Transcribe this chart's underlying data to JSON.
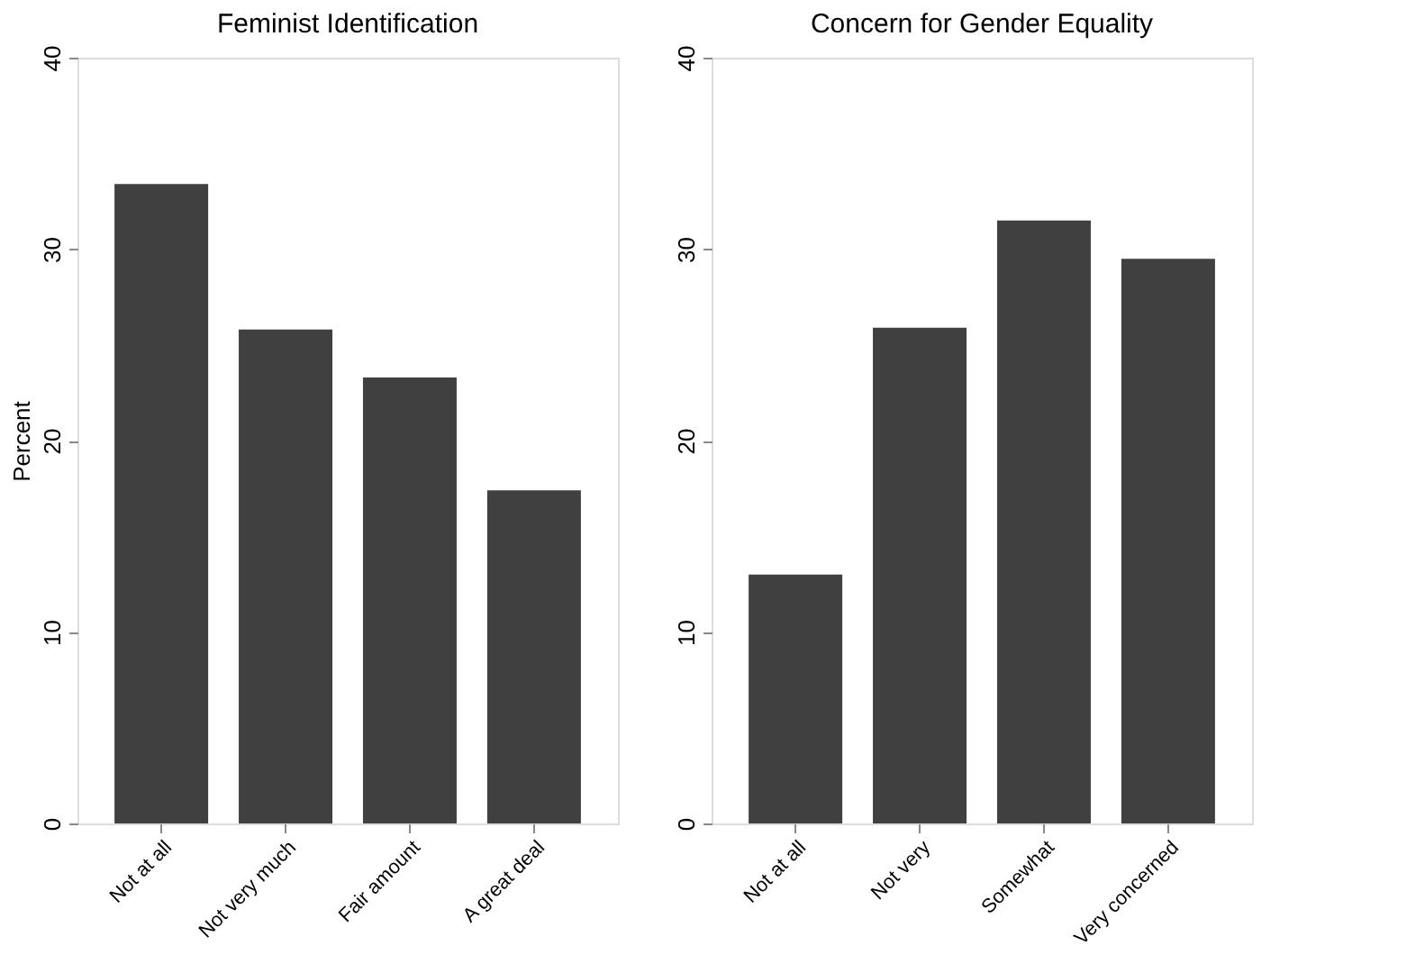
{
  "chart_data": [
    {
      "type": "bar",
      "title": "Feminist Identification",
      "ylabel": "Percent",
      "categories": [
        "Not at all",
        "Not very much",
        "Fair amount",
        "A great deal"
      ],
      "values": [
        33.4,
        25.8,
        23.3,
        17.4
      ],
      "color": "#404040",
      "ylim": [
        0,
        40
      ],
      "yticks": [
        0,
        10,
        20,
        30,
        40
      ],
      "grid": false
    },
    {
      "type": "bar",
      "title": "Concern for Gender Equality",
      "categories": [
        "Not at all",
        "Not very",
        "Somewhat",
        "Very concerned"
      ],
      "values": [
        13.0,
        25.9,
        31.5,
        29.5
      ],
      "color": "#404040",
      "ylim": [
        0,
        40
      ],
      "yticks": [
        0,
        10,
        20,
        30,
        40
      ],
      "grid": false
    }
  ]
}
